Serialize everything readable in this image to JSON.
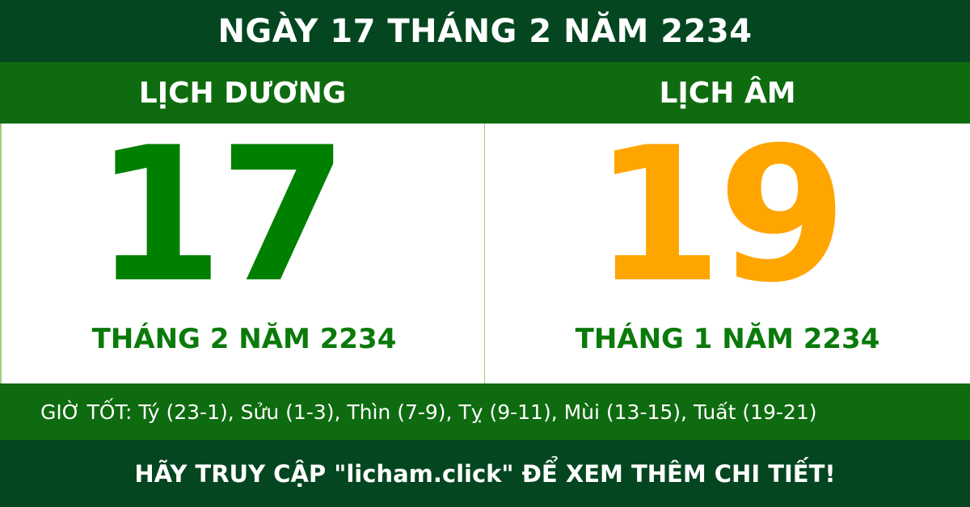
{
  "header": {
    "title": "NGÀY 17 THÁNG 2 NĂM 2234"
  },
  "solar": {
    "label": "LỊCH DƯƠNG",
    "day": "17",
    "month_year": "THÁNG 2 NĂM 2234",
    "color": "#008000"
  },
  "lunar": {
    "label": "LỊCH ÂM",
    "day": "19",
    "month_year": "THÁNG 1 NĂM 2234",
    "color": "#ffa500"
  },
  "good_hours": "GIỜ TỐT: Tý (23-1), Sửu (1-3), Thìn (7-9), Tỵ (9-11), Mùi (13-15), Tuất (19-21)",
  "footer": "HÃY TRUY CẬP \"licham.click\" ĐỂ XEM THÊM CHI TIẾT!"
}
